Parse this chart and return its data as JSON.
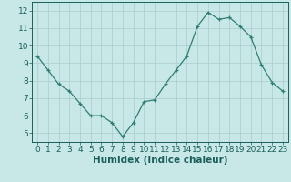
{
  "x": [
    0,
    1,
    2,
    3,
    4,
    5,
    6,
    7,
    8,
    9,
    10,
    11,
    12,
    13,
    14,
    15,
    16,
    17,
    18,
    19,
    20,
    21,
    22,
    23
  ],
  "y": [
    9.4,
    8.6,
    7.8,
    7.4,
    6.7,
    6.0,
    6.0,
    5.6,
    4.8,
    5.6,
    6.8,
    6.9,
    7.8,
    8.6,
    9.4,
    11.1,
    11.9,
    11.5,
    11.6,
    11.1,
    10.5,
    8.9,
    7.9,
    7.4
  ],
  "line_color": "#2e7d72",
  "marker": "+",
  "bg_color": "#c8e8e8",
  "grid_color": "#aacccc",
  "xlabel": "Humidex (Indice chaleur)",
  "ylim": [
    4.5,
    12.5
  ],
  "xlim": [
    -0.5,
    23.5
  ],
  "yticks": [
    5,
    6,
    7,
    8,
    9,
    10,
    11,
    12
  ],
  "xticks": [
    0,
    1,
    2,
    3,
    4,
    5,
    6,
    7,
    8,
    9,
    10,
    11,
    12,
    13,
    14,
    15,
    16,
    17,
    18,
    19,
    20,
    21,
    22,
    23
  ],
  "xlabel_color": "#1a5f5a",
  "tick_color": "#1a5f5a",
  "axis_color": "#1a5f5a",
  "font_size": 6.5
}
